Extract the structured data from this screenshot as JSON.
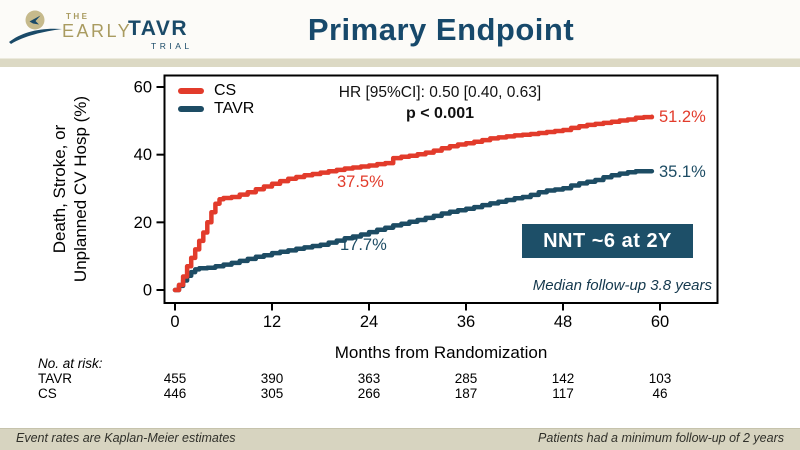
{
  "header": {
    "logo": {
      "the": "THE",
      "early": "EARLY",
      "tavr": "TAVR",
      "trial": "TRIAL"
    },
    "title": "Primary Endpoint"
  },
  "colors": {
    "cs_red": "#e23b2b",
    "tavr_navy": "#1d4c64",
    "navy_dark": "#17496b",
    "nnt_bg": "#1d4f68",
    "gold": "#a99b60",
    "tan_band": "#d7d4c0"
  },
  "chart_data": {
    "type": "line",
    "subtype": "kaplan-meier-step",
    "title": "Primary Endpoint",
    "xlabel": "Months from Randomization",
    "ylabel_lines": [
      "Death, Stroke, or",
      "Unplanned CV Hosp (%)"
    ],
    "xlim": [
      0,
      62
    ],
    "ylim": [
      0,
      60
    ],
    "x_ticks": [
      0,
      12,
      24,
      36,
      48,
      60
    ],
    "y_ticks": [
      0,
      20,
      40,
      60
    ],
    "grid": false,
    "legend_position": "top-left-inside",
    "series": [
      {
        "name": "CS",
        "color": "#e23b2b",
        "label_2y": "37.5%",
        "final_label": "51.2%",
        "points": [
          [
            0,
            0
          ],
          [
            0.5,
            1.5
          ],
          [
            1,
            4
          ],
          [
            1.5,
            7
          ],
          [
            2,
            9.5
          ],
          [
            2.5,
            12
          ],
          [
            3,
            14.5
          ],
          [
            3.5,
            17
          ],
          [
            4,
            20
          ],
          [
            4.5,
            23
          ],
          [
            5,
            25.5
          ],
          [
            5.5,
            26.8
          ],
          [
            6,
            27.2
          ],
          [
            7,
            27.5
          ],
          [
            8,
            28.2
          ],
          [
            9,
            28.9
          ],
          [
            10,
            29.8
          ],
          [
            11,
            30.6
          ],
          [
            12,
            31.4
          ],
          [
            13,
            32.2
          ],
          [
            14,
            32.9
          ],
          [
            15,
            33.4
          ],
          [
            16,
            33.9
          ],
          [
            17,
            34.3
          ],
          [
            18,
            34.7
          ],
          [
            19,
            35.1
          ],
          [
            20,
            35.5
          ],
          [
            21,
            35.9
          ],
          [
            22,
            36.2
          ],
          [
            23,
            36.5
          ],
          [
            24,
            36.8
          ],
          [
            25,
            37.2
          ],
          [
            26,
            37.5
          ],
          [
            27,
            39
          ],
          [
            28,
            39.4
          ],
          [
            29,
            39.7
          ],
          [
            30,
            40.1
          ],
          [
            31,
            40.6
          ],
          [
            32,
            41.2
          ],
          [
            33,
            41.9
          ],
          [
            34,
            42.5
          ],
          [
            35,
            43
          ],
          [
            36,
            43.4
          ],
          [
            37,
            43.8
          ],
          [
            38,
            44.3
          ],
          [
            39,
            44.8
          ],
          [
            40,
            45.1
          ],
          [
            41,
            45.4
          ],
          [
            42,
            45.7
          ],
          [
            43,
            45.9
          ],
          [
            44,
            46.1
          ],
          [
            45,
            46.4
          ],
          [
            46,
            46.7
          ],
          [
            47,
            47
          ],
          [
            48,
            47.3
          ],
          [
            49,
            47.9
          ],
          [
            50,
            48.4
          ],
          [
            51,
            48.8
          ],
          [
            52,
            49.1
          ],
          [
            53,
            49.4
          ],
          [
            54,
            49.7
          ],
          [
            55,
            50.1
          ],
          [
            56,
            50.4
          ],
          [
            57,
            50.9
          ],
          [
            58,
            51.1
          ],
          [
            59,
            51.2
          ]
        ]
      },
      {
        "name": "TAVR",
        "color": "#1d4c64",
        "label_2y": "17.7%",
        "final_label": "35.1%",
        "points": [
          [
            0,
            0
          ],
          [
            0.5,
            1.2
          ],
          [
            1,
            2.8
          ],
          [
            1.5,
            4.2
          ],
          [
            2,
            5.3
          ],
          [
            2.5,
            6.1
          ],
          [
            3,
            6.4
          ],
          [
            4,
            6.6
          ],
          [
            5,
            7
          ],
          [
            6,
            7.5
          ],
          [
            7,
            8
          ],
          [
            8,
            8.6
          ],
          [
            9,
            9.2
          ],
          [
            10,
            9.8
          ],
          [
            11,
            10.3
          ],
          [
            12,
            10.9
          ],
          [
            13,
            11.3
          ],
          [
            14,
            11.7
          ],
          [
            15,
            12.2
          ],
          [
            16,
            12.6
          ],
          [
            17,
            13
          ],
          [
            18,
            13.4
          ],
          [
            19,
            14
          ],
          [
            20,
            14.6
          ],
          [
            21,
            15.3
          ],
          [
            22,
            15.8
          ],
          [
            23,
            16.4
          ],
          [
            24,
            17.1
          ],
          [
            25,
            17.8
          ],
          [
            26,
            18.4
          ],
          [
            27,
            19.1
          ],
          [
            28,
            19.6
          ],
          [
            29,
            20.2
          ],
          [
            30,
            20.7
          ],
          [
            31,
            21.3
          ],
          [
            32,
            21.9
          ],
          [
            33,
            22.6
          ],
          [
            34,
            23.1
          ],
          [
            35,
            23.6
          ],
          [
            36,
            24
          ],
          [
            37,
            24.5
          ],
          [
            38,
            25.1
          ],
          [
            39,
            25.6
          ],
          [
            40,
            26.1
          ],
          [
            41,
            26.6
          ],
          [
            42,
            27.1
          ],
          [
            43,
            27.5
          ],
          [
            44,
            28.1
          ],
          [
            45,
            28.9
          ],
          [
            46,
            29.4
          ],
          [
            47,
            29.7
          ],
          [
            48,
            30.1
          ],
          [
            49,
            30.9
          ],
          [
            50,
            31.5
          ],
          [
            51,
            32
          ],
          [
            52,
            32.5
          ],
          [
            53,
            33.3
          ],
          [
            54,
            33.9
          ],
          [
            55,
            34.4
          ],
          [
            56,
            34.8
          ],
          [
            57,
            35.1
          ],
          [
            59,
            35.1
          ]
        ]
      }
    ],
    "annotations": {
      "hr": "HR [95%CI]: 0.50 [0.40, 0.63]",
      "p_value": "p < 0.001",
      "nnt": "NNT ~6 at 2Y",
      "median_followup": "Median follow-up 3.8 years"
    },
    "risk_table": {
      "title": "No. at risk:",
      "months": [
        0,
        12,
        24,
        36,
        48,
        60
      ],
      "rows": [
        {
          "label": "TAVR",
          "values": [
            455,
            390,
            363,
            285,
            142,
            103
          ]
        },
        {
          "label": "CS",
          "values": [
            446,
            305,
            266,
            187,
            117,
            46
          ]
        }
      ]
    }
  },
  "footer": {
    "left": "Event rates are Kaplan-Meier estimates",
    "right": "Patients had a minimum follow-up of 2 years"
  }
}
